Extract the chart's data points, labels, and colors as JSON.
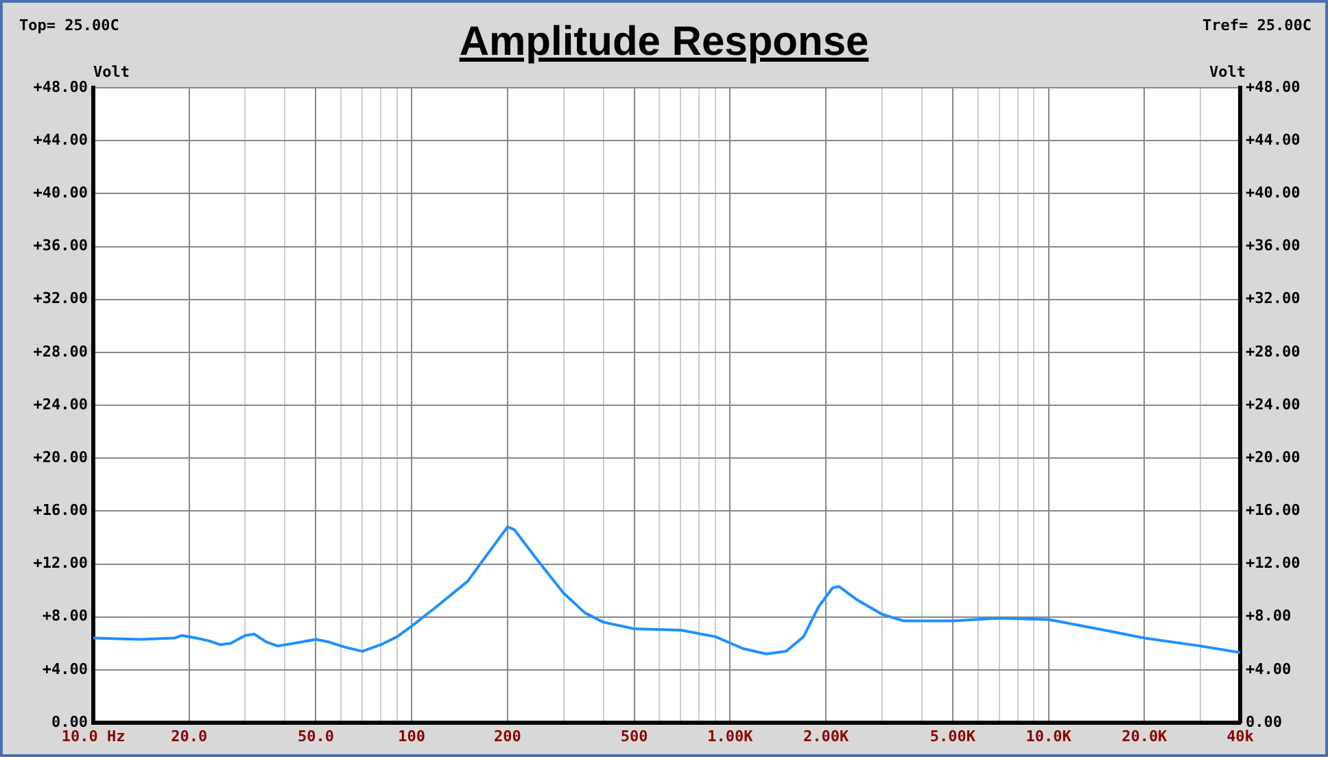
{
  "chart_data": {
    "type": "line",
    "title": "Amplitude Response",
    "ylabel": "Volt",
    "y2label": "Volt",
    "annotations": [
      "Top=  25.00C",
      "Tref=  25.00C"
    ],
    "log": "x",
    "grid": true,
    "legend": false,
    "marker": "none",
    "line_style": "solid",
    "x": [
      10,
      14,
      18,
      19,
      21,
      23,
      25,
      27,
      30,
      32,
      35,
      38,
      45,
      50,
      55,
      62,
      70,
      80,
      90,
      100,
      120,
      150,
      170,
      200,
      210,
      250,
      300,
      350,
      400,
      500,
      700,
      900,
      1100,
      1300,
      1500,
      1700,
      1900,
      2100,
      2200,
      2500,
      3000,
      3500,
      5000,
      7000,
      10000,
      15000,
      20000,
      30000,
      40000
    ],
    "series": [
      {
        "color": "#1e90ff",
        "values": [
          6.4,
          6.3,
          6.4,
          6.6,
          6.4,
          6.2,
          5.9,
          6.0,
          6.6,
          6.7,
          6.1,
          5.8,
          6.1,
          6.3,
          6.1,
          5.7,
          5.4,
          5.9,
          6.5,
          7.3,
          8.8,
          10.7,
          12.5,
          14.8,
          14.6,
          12.2,
          9.8,
          8.3,
          7.6,
          7.1,
          7.0,
          6.5,
          5.6,
          5.2,
          5.4,
          6.5,
          8.8,
          10.2,
          10.3,
          9.3,
          8.2,
          7.7,
          7.7,
          7.9,
          7.8,
          7.0,
          6.4,
          5.8,
          5.3
        ]
      }
    ],
    "xlim": [
      10,
      40000
    ],
    "xticks": [
      {
        "value": 10,
        "label": "10.0 Hz"
      },
      {
        "value": 20,
        "label": "20.0"
      },
      {
        "value": 30,
        "label": null
      },
      {
        "value": 40,
        "label": null
      },
      {
        "value": 50,
        "label": "50.0"
      },
      {
        "value": 60,
        "label": null
      },
      {
        "value": 70,
        "label": null
      },
      {
        "value": 80,
        "label": null
      },
      {
        "value": 90,
        "label": null
      },
      {
        "value": 100,
        "label": "100"
      },
      {
        "value": 200,
        "label": "200"
      },
      {
        "value": 300,
        "label": null
      },
      {
        "value": 400,
        "label": null
      },
      {
        "value": 500,
        "label": "500"
      },
      {
        "value": 600,
        "label": null
      },
      {
        "value": 700,
        "label": null
      },
      {
        "value": 800,
        "label": null
      },
      {
        "value": 900,
        "label": null
      },
      {
        "value": 1000,
        "label": "1.00K"
      },
      {
        "value": 2000,
        "label": "2.00K"
      },
      {
        "value": 3000,
        "label": null
      },
      {
        "value": 4000,
        "label": null
      },
      {
        "value": 5000,
        "label": "5.00K"
      },
      {
        "value": 6000,
        "label": null
      },
      {
        "value": 7000,
        "label": null
      },
      {
        "value": 8000,
        "label": null
      },
      {
        "value": 9000,
        "label": null
      },
      {
        "value": 10000,
        "label": "10.0K"
      },
      {
        "value": 20000,
        "label": "20.0K"
      },
      {
        "value": 30000,
        "label": null
      },
      {
        "value": 40000,
        "label": "40k"
      }
    ],
    "ylim": [
      0,
      48
    ],
    "yticks": [
      {
        "value": 0,
        "label": "0.00"
      },
      {
        "value": 4,
        "label": "+4.00"
      },
      {
        "value": 8,
        "label": "+8.00"
      },
      {
        "value": 12,
        "label": "+12.00"
      },
      {
        "value": 16,
        "label": "+16.00"
      },
      {
        "value": 20,
        "label": "+20.00"
      },
      {
        "value": 24,
        "label": "+24.00"
      },
      {
        "value": 28,
        "label": "+28.00"
      },
      {
        "value": 32,
        "label": "+32.00"
      },
      {
        "value": 36,
        "label": "+36.00"
      },
      {
        "value": 40,
        "label": "+40.00"
      },
      {
        "value": 44,
        "label": "+44.00"
      },
      {
        "value": 48,
        "label": "+48.00"
      }
    ],
    "y2lim": [
      0,
      48
    ],
    "y2ticks": [
      {
        "value": 0,
        "label": "0.00"
      },
      {
        "value": 4,
        "label": "+4.00"
      },
      {
        "value": 8,
        "label": "+8.00"
      },
      {
        "value": 12,
        "label": "+12.00"
      },
      {
        "value": 16,
        "label": "+16.00"
      },
      {
        "value": 20,
        "label": "+20.00"
      },
      {
        "value": 24,
        "label": "+24.00"
      },
      {
        "value": 28,
        "label": "+28.00"
      },
      {
        "value": 32,
        "label": "+32.00"
      },
      {
        "value": 36,
        "label": "+36.00"
      },
      {
        "value": 40,
        "label": "+40.00"
      },
      {
        "value": 44,
        "label": "+44.00"
      },
      {
        "value": 48,
        "label": "+48.00"
      }
    ]
  }
}
